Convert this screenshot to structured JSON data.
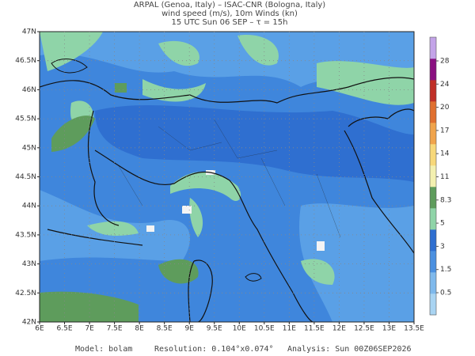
{
  "header": {
    "line1": "ARPAL (Genoa, Italy)  –  ISAC-CNR (Bologna, Italy)",
    "line2": "wind speed (m/s), 10m Winds (kn)",
    "line3": "15 UTC Sun 06 SEP  –  τ = 15h"
  },
  "map": {
    "lon_labels": [
      "6E",
      "6.5E",
      "7E",
      "7.5E",
      "8E",
      "8.5E",
      "9E",
      "9.5E",
      "10E",
      "10.5E",
      "11E",
      "11.5E",
      "12E",
      "12.5E",
      "13E",
      "13.5E"
    ],
    "lat_labels": [
      "42N",
      "42.5N",
      "43N",
      "43.5N",
      "44N",
      "44.5N",
      "45N",
      "45.5N",
      "46N",
      "46.5N",
      "47N"
    ]
  },
  "colorbar": {
    "labels": [
      "0.5",
      "1.5",
      "3",
      "5",
      "8.3",
      "11",
      "14",
      "17",
      "20",
      "24",
      "28"
    ]
  },
  "footer": {
    "model": "Model: bolam",
    "resolution": "Resolution: 0.104°x0.074°",
    "analysis": "Analysis: Sun 00Z06SEP2026"
  }
}
